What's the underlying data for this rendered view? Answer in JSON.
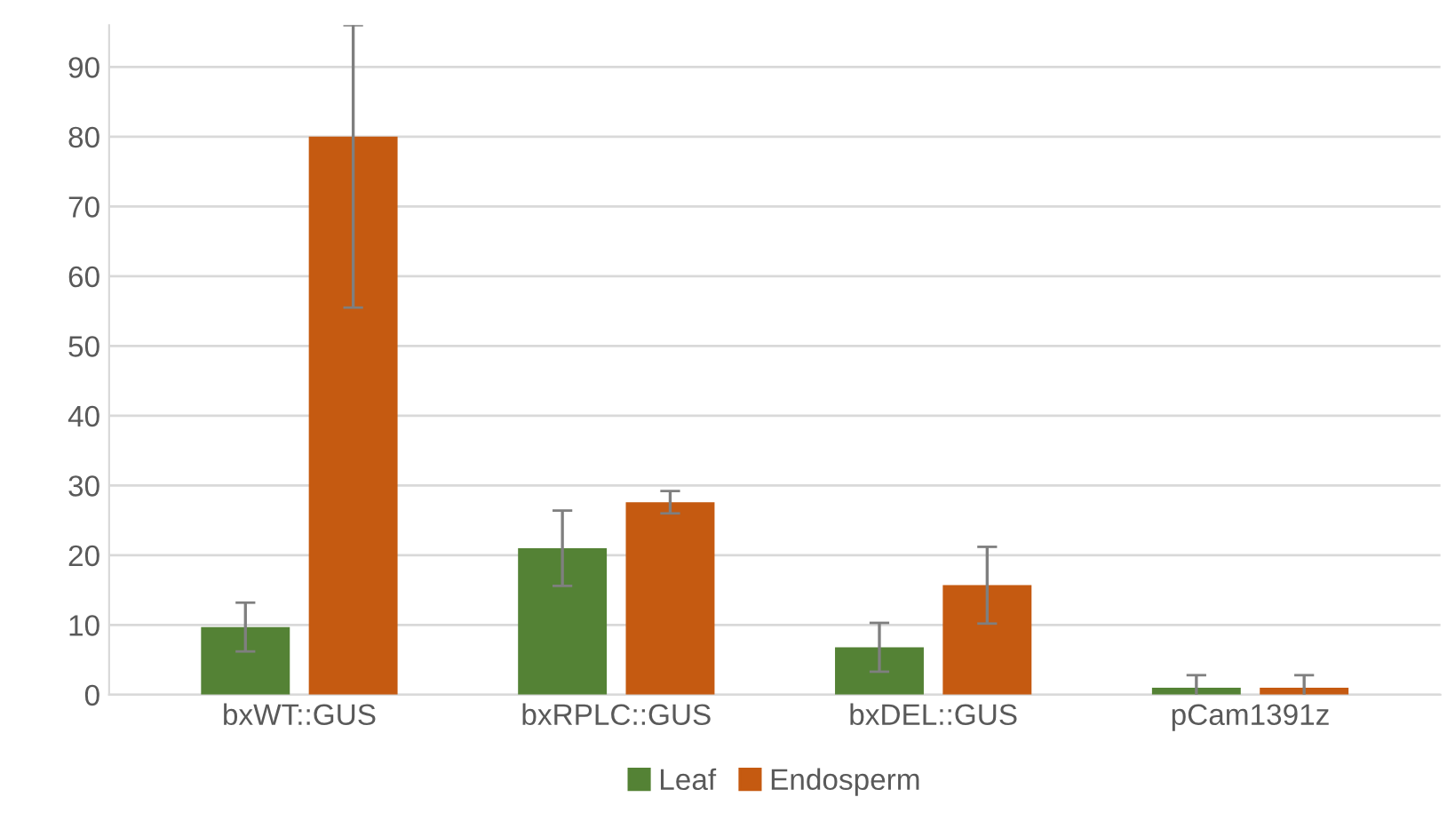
{
  "chart_data": {
    "type": "bar",
    "categories": [
      "bxWT::GUS",
      "bxRPLC::GUS",
      "bxDEL::GUS",
      "pCam1391z"
    ],
    "series": [
      {
        "name": "Leaf",
        "color": "#548235",
        "values": [
          9.7,
          21,
          6.8,
          1.0
        ],
        "errors": [
          3.5,
          5.4,
          3.5,
          1.8
        ]
      },
      {
        "name": "Endosperm",
        "color": "#c55a11",
        "values": [
          80,
          27.6,
          15.7,
          1.0
        ],
        "errors": [
          [
            55.5,
            96
          ],
          1.6,
          5.5,
          1.8
        ]
      }
    ],
    "ylim": [
      0,
      96
    ],
    "yticks": [
      0,
      10,
      20,
      30,
      40,
      50,
      60,
      70,
      80,
      90
    ],
    "grid": "y",
    "legend": "bottom"
  }
}
